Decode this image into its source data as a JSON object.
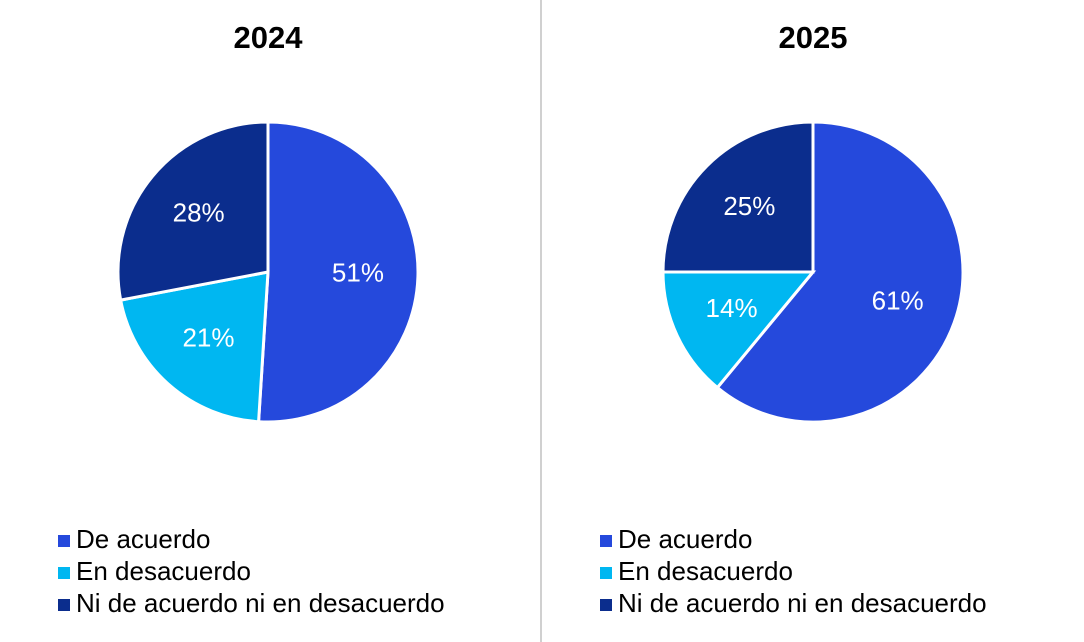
{
  "chart_data": [
    {
      "type": "pie",
      "title": "2024",
      "categories": [
        "De acuerdo",
        "En desacuerdo",
        "Ni de acuerdo ni en desacuerdo"
      ],
      "values": [
        51,
        21,
        28
      ],
      "value_labels": [
        "51%",
        "21%",
        "28%"
      ],
      "colors": [
        "#2549dc",
        "#00b7f1",
        "#0b2d8d"
      ]
    },
    {
      "type": "pie",
      "title": "2025",
      "categories": [
        "De acuerdo",
        "En desacuerdo",
        "Ni de acuerdo ni en desacuerdo"
      ],
      "values": [
        61,
        14,
        25
      ],
      "value_labels": [
        "61%",
        "14%",
        "25%"
      ],
      "colors": [
        "#2549dc",
        "#00b7f1",
        "#0b2d8d"
      ]
    }
  ]
}
